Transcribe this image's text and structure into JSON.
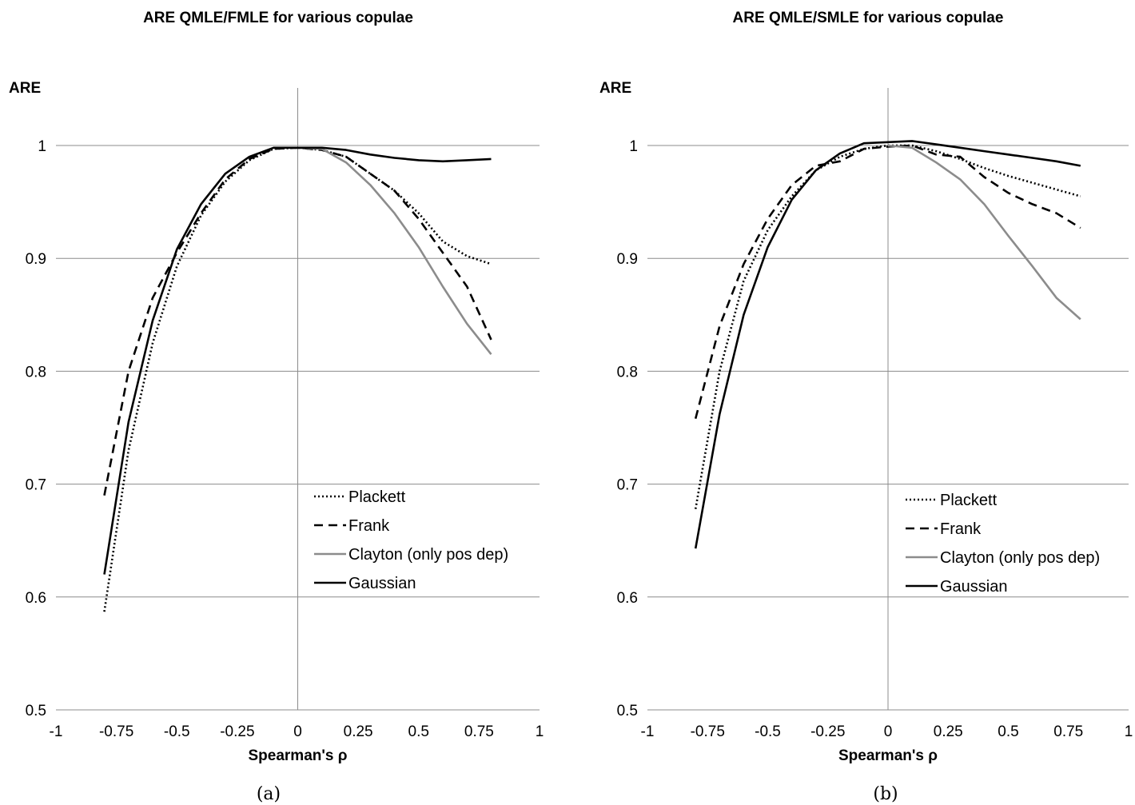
{
  "chart_data": [
    {
      "type": "line",
      "title": "ARE QMLE/FMLE for various copulae",
      "xlabel": "Spearman's ρ",
      "ylabel": "ARE",
      "caption": "(a)",
      "xlim": [
        -1,
        1
      ],
      "ylim": [
        0.5,
        1.05
      ],
      "xticks": [
        -1,
        -0.75,
        -0.5,
        -0.25,
        0,
        0.25,
        0.5,
        0.75,
        1
      ],
      "xtick_labels": [
        "-1",
        "-0.75",
        "-0.5",
        "-0.25",
        "0",
        "0.25",
        "0.5",
        "0.75",
        "1"
      ],
      "yticks": [
        0.5,
        0.6,
        0.7,
        0.8,
        0.9,
        1
      ],
      "ytick_labels": [
        "0.5",
        "0.6",
        "0.7",
        "0.8",
        "0.9",
        "1"
      ],
      "grid": "horizontal",
      "legend_position": "lower-right",
      "series": [
        {
          "name": "Plackett",
          "style": "dotted",
          "color": "#000000",
          "x": [
            -0.8,
            -0.7,
            -0.6,
            -0.5,
            -0.4,
            -0.3,
            -0.2,
            -0.1,
            0,
            0.1,
            0.2,
            0.3,
            0.4,
            0.5,
            0.6,
            0.7,
            0.8
          ],
          "y": [
            0.587,
            0.73,
            0.825,
            0.893,
            0.938,
            0.968,
            0.987,
            0.997,
            0.998,
            0.996,
            0.99,
            0.975,
            0.96,
            0.94,
            0.915,
            0.902,
            0.895
          ]
        },
        {
          "name": "Frank",
          "style": "dashed",
          "color": "#000000",
          "x": [
            -0.8,
            -0.7,
            -0.6,
            -0.5,
            -0.4,
            -0.3,
            -0.2,
            -0.1,
            0,
            0.1,
            0.2,
            0.3,
            0.4,
            0.5,
            0.6,
            0.7,
            0.8
          ],
          "y": [
            0.69,
            0.8,
            0.865,
            0.905,
            0.94,
            0.97,
            0.988,
            0.997,
            0.998,
            0.996,
            0.99,
            0.975,
            0.96,
            0.935,
            0.905,
            0.875,
            0.828
          ]
        },
        {
          "name": "Clayton (only pos dep)",
          "style": "solid",
          "color": "#8c8c8c",
          "x": [
            0,
            0.1,
            0.2,
            0.3,
            0.4,
            0.5,
            0.6,
            0.7,
            0.8
          ],
          "y": [
            0.998,
            0.997,
            0.985,
            0.965,
            0.94,
            0.91,
            0.875,
            0.842,
            0.815
          ]
        },
        {
          "name": "Gaussian",
          "style": "solid",
          "color": "#000000",
          "x": [
            -0.8,
            -0.7,
            -0.6,
            -0.5,
            -0.4,
            -0.3,
            -0.2,
            -0.1,
            0,
            0.1,
            0.2,
            0.3,
            0.4,
            0.5,
            0.6,
            0.7,
            0.8
          ],
          "y": [
            0.62,
            0.755,
            0.845,
            0.908,
            0.948,
            0.975,
            0.99,
            0.998,
            0.998,
            0.998,
            0.996,
            0.992,
            0.989,
            0.987,
            0.986,
            0.987,
            0.988
          ]
        }
      ]
    },
    {
      "type": "line",
      "title": "ARE QMLE/SMLE for various copulae",
      "xlabel": "Spearman's ρ",
      "ylabel": "ARE",
      "caption": "(b)",
      "xlim": [
        -1,
        1
      ],
      "ylim": [
        0.5,
        1.05
      ],
      "xticks": [
        -1,
        -0.75,
        -0.5,
        -0.25,
        0,
        0.25,
        0.5,
        0.75,
        1
      ],
      "xtick_labels": [
        "-1",
        "-0.75",
        "-0.5",
        "-0.25",
        "0",
        "0.25",
        "0.5",
        "0.75",
        "1"
      ],
      "yticks": [
        0.5,
        0.6,
        0.7,
        0.8,
        0.9,
        1
      ],
      "ytick_labels": [
        "0.5",
        "0.6",
        "0.7",
        "0.8",
        "0.9",
        "1"
      ],
      "grid": "horizontal",
      "legend_position": "lower-right",
      "series": [
        {
          "name": "Plackett",
          "style": "dotted",
          "color": "#000000",
          "x": [
            -0.8,
            -0.7,
            -0.6,
            -0.5,
            -0.4,
            -0.3,
            -0.2,
            -0.1,
            0,
            0.1,
            0.2,
            0.3,
            0.4,
            0.5,
            0.6,
            0.7,
            0.8
          ],
          "y": [
            0.678,
            0.8,
            0.88,
            0.925,
            0.955,
            0.978,
            0.99,
            0.997,
            1.0,
            1.0,
            0.995,
            0.988,
            0.98,
            0.973,
            0.967,
            0.961,
            0.955
          ]
        },
        {
          "name": "Frank",
          "style": "dashed",
          "color": "#000000",
          "x": [
            -0.8,
            -0.7,
            -0.6,
            -0.5,
            -0.4,
            -0.3,
            -0.2,
            -0.1,
            0,
            0.1,
            0.2,
            0.3,
            0.4,
            0.5,
            0.6,
            0.7,
            0.8
          ],
          "y": [
            0.758,
            0.84,
            0.895,
            0.935,
            0.965,
            0.982,
            0.986,
            0.997,
            0.999,
            1.0,
            0.992,
            0.99,
            0.972,
            0.958,
            0.948,
            0.94,
            0.927
          ]
        },
        {
          "name": "Clayton (only pos dep)",
          "style": "solid",
          "color": "#8c8c8c",
          "x": [
            0,
            0.1,
            0.2,
            0.3,
            0.4,
            0.5,
            0.6,
            0.7,
            0.8
          ],
          "y": [
            1.0,
            0.998,
            0.985,
            0.97,
            0.948,
            0.92,
            0.893,
            0.865,
            0.846
          ]
        },
        {
          "name": "Gaussian",
          "style": "solid",
          "color": "#000000",
          "x": [
            -0.8,
            -0.7,
            -0.6,
            -0.5,
            -0.4,
            -0.3,
            -0.2,
            -0.1,
            0,
            0.1,
            0.2,
            0.3,
            0.4,
            0.5,
            0.6,
            0.7,
            0.8
          ],
          "y": [
            0.643,
            0.762,
            0.85,
            0.91,
            0.952,
            0.978,
            0.993,
            1.002,
            1.003,
            1.004,
            1.001,
            0.998,
            0.995,
            0.992,
            0.989,
            0.986,
            0.982
          ]
        }
      ]
    }
  ]
}
